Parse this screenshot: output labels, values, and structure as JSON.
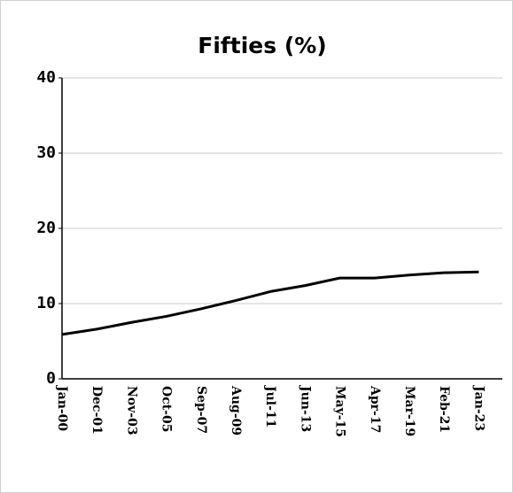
{
  "chart_data": {
    "type": "line",
    "title": "Fifties (%)",
    "categories": [
      "Jan-00",
      "Dec-01",
      "Nov-03",
      "Oct-05",
      "Sep-07",
      "Aug-09",
      "Jul-11",
      "Jun-13",
      "May-15",
      "Apr-17",
      "Mar-19",
      "Feb-21",
      "Jan-23"
    ],
    "series": [
      {
        "name": "Fifties",
        "color": "#000000",
        "values": [
          5.9,
          6.6,
          7.5,
          8.3,
          9.3,
          10.4,
          11.6,
          12.4,
          13.4,
          13.4,
          13.8,
          14.1,
          14.2
        ]
      }
    ],
    "ylim": [
      0,
      40
    ],
    "yticks": [
      0,
      10,
      20,
      30,
      40
    ],
    "grid": true
  }
}
